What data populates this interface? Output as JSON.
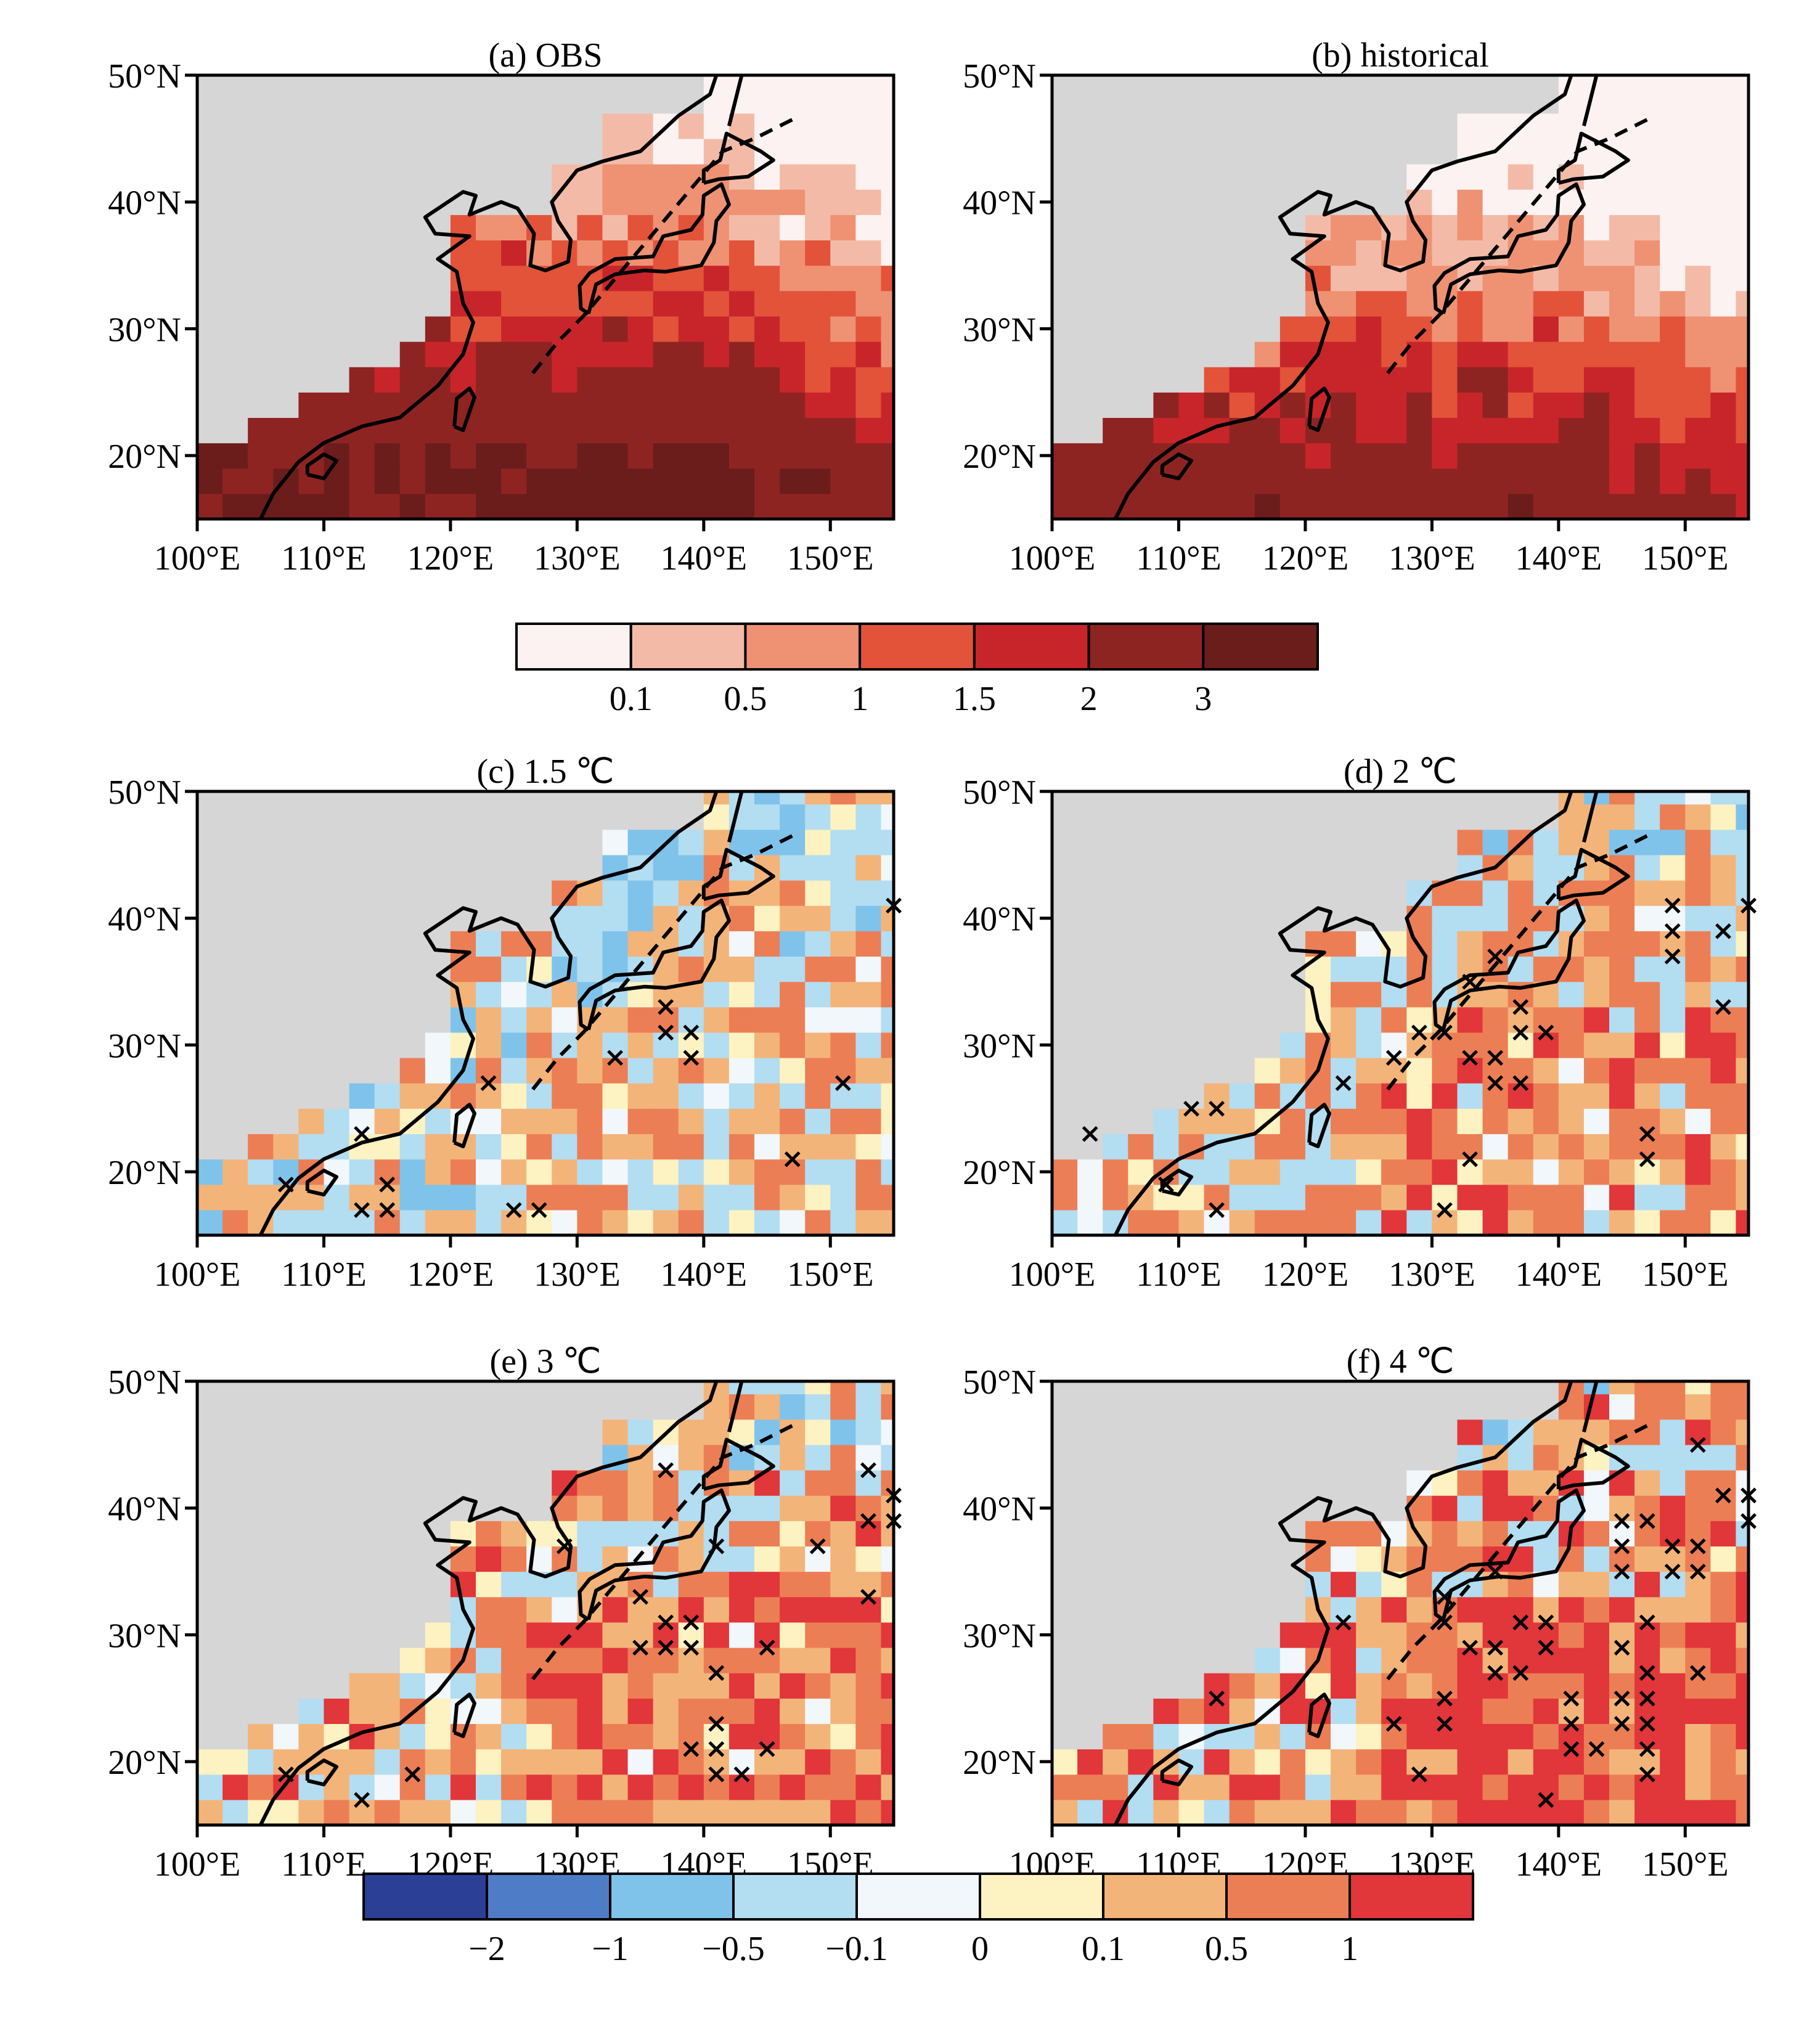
{
  "figure": {
    "panels": [
      {
        "id": "a",
        "title": "(a) OBS",
        "palette": "abs"
      },
      {
        "id": "b",
        "title": "(b) historical",
        "palette": "abs"
      },
      {
        "id": "c",
        "title": "(c) 1.5 ℃",
        "palette": "diff"
      },
      {
        "id": "d",
        "title": "(d) 2 ℃",
        "palette": "diff"
      },
      {
        "id": "e",
        "title": "(e) 3 ℃",
        "palette": "diff"
      },
      {
        "id": "f",
        "title": "(f) 4 ℃",
        "palette": "diff"
      }
    ],
    "lat_labels": [
      "50°N",
      "40°N",
      "30°N",
      "20°N"
    ],
    "lon_labels": [
      "100°E",
      "110°E",
      "120°E",
      "130°E",
      "140°E",
      "150°E"
    ],
    "colorbar_abs": {
      "colors": [
        "#fdf2f2",
        "#f3bba7",
        "#ee9273",
        "#e2533a",
        "#c8252a",
        "#8e2422",
        "#6b1d1b"
      ],
      "tick_labels": [
        "0.1",
        "0.5",
        "1",
        "1.5",
        "2",
        "3"
      ]
    },
    "colorbar_diff": {
      "colors": [
        "#2b3f96",
        "#4f7cc7",
        "#7fc3eb",
        "#b3ddf1",
        "#f1f7fa",
        "#fdf2c1",
        "#f3b47a",
        "#ec7e55",
        "#e1363a"
      ],
      "tick_labels": [
        "−2",
        "−1",
        "−0.5",
        "−0.1",
        "0",
        "0.1",
        "0.5",
        "1"
      ]
    },
    "land_color": "#d6d6d6",
    "marker_symbol": "×"
  }
}
